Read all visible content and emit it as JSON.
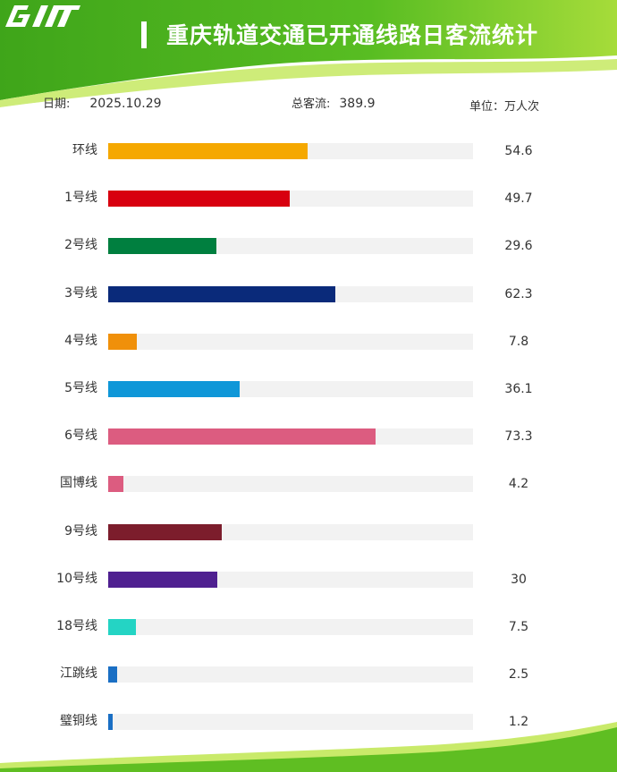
{
  "header": {
    "title": "重庆轨道交通已开通线路日客流统计",
    "logo_name": "cqrt-logo"
  },
  "meta": {
    "date_label": "日期:",
    "date_value": "2025.10.29",
    "total_label": "总客流:",
    "total_value": "389.9",
    "unit": "单位：万人次"
  },
  "colors": {
    "header_green": "#4fb81c",
    "header_light": "#b6e04a",
    "track": "#f2f2f2"
  },
  "chart_data": {
    "type": "bar",
    "orientation": "horizontal",
    "title": "重庆轨道交通已开通线路日客流统计",
    "unit": "单位：万人次",
    "xlim": [
      0,
      100
    ],
    "categories": [
      "环线",
      "1号线",
      "2号线",
      "3号线",
      "4号线",
      "5号线",
      "6号线",
      "国博线",
      "9号线",
      "10号线",
      "18号线",
      "江跳线",
      "璧铜线"
    ],
    "values": [
      54.6,
      49.7,
      29.6,
      62.3,
      7.8,
      36.1,
      73.3,
      4.2,
      31.2,
      30,
      7.5,
      2.5,
      1.2
    ],
    "value_labels": [
      "54.6",
      "49.7",
      "29.6",
      "62.3",
      "7.8",
      "36.1",
      "73.3",
      "4.2",
      "",
      "30",
      "7.5",
      "2.5",
      "1.2"
    ],
    "bar_colors": [
      "#f5a800",
      "#d8000f",
      "#007f3f",
      "#0a2a7a",
      "#f0900a",
      "#0f97d8",
      "#dc5c80",
      "#dc5c80",
      "#7c1d2c",
      "#4f2090",
      "#24d4c4",
      "#1a6fc4",
      "#1a6fc4"
    ],
    "grid": false,
    "legend": "none"
  }
}
